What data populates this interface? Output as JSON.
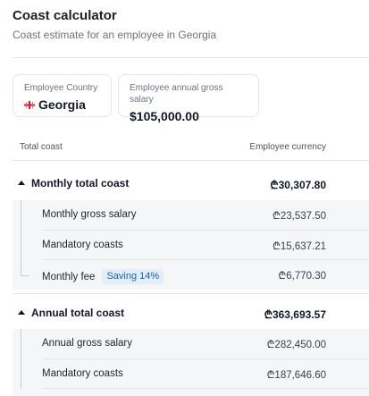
{
  "header": {
    "title": "Coast calculator",
    "subtitle": "Coast estimate for an employee in Georgia"
  },
  "inputs": {
    "country": {
      "label": "Employee Country",
      "value": "Georgia",
      "flag_icon": "georgia-flag-icon"
    },
    "salary": {
      "label": "Employee annual gross salary",
      "value": "$105,000.00"
    }
  },
  "table": {
    "col_left": "Total coast",
    "col_right": "Employee currency"
  },
  "monthly": {
    "label": "Monthly total coast",
    "amount": "₾30,307.80",
    "rows": [
      {
        "label": "Monthly gross salary",
        "amount": "₾23,537.50"
      },
      {
        "label": "Mandatory coasts",
        "amount": "₾15,637.21"
      },
      {
        "label": "Monthly fee",
        "badge": "Saving 14%",
        "amount": "₾6,770.30"
      }
    ]
  },
  "annual": {
    "label": "Annual total coast",
    "amount": "₾363,693.57",
    "rows": [
      {
        "label": "Annual gross salary",
        "amount": "₾282,450.00"
      },
      {
        "label": "Mandatory coasts",
        "amount": "₾187,646.60"
      }
    ]
  },
  "colors": {
    "badge_bg": "#e3eefb",
    "badge_text": "#1d5fa8",
    "group_bg": "#f5f6f7"
  }
}
